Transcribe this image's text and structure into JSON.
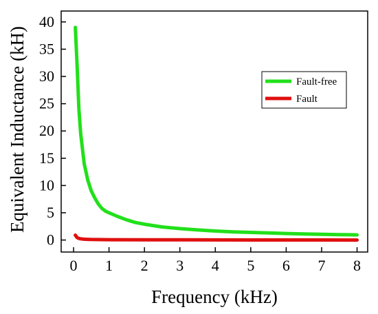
{
  "chart_data": {
    "type": "line",
    "title": "",
    "xlabel": "Frequency (kHz)",
    "ylabel": "Equivalent Inductance (kH)",
    "xlim": [
      -0.35,
      8.3
    ],
    "ylim": [
      -2.2,
      42
    ],
    "xticks": [
      0,
      1,
      2,
      3,
      4,
      5,
      6,
      7,
      8
    ],
    "yticks": [
      0,
      5,
      10,
      15,
      20,
      25,
      30,
      35,
      40
    ],
    "grid": false,
    "legend_position": "right",
    "series": [
      {
        "name": "Fault-free",
        "color": "#22e01b",
        "x": [
          0.05,
          0.1,
          0.15,
          0.2,
          0.3,
          0.4,
          0.5,
          0.6,
          0.7,
          0.8,
          0.9,
          1.0,
          1.25,
          1.5,
          1.75,
          2.0,
          2.5,
          3.0,
          3.5,
          4.0,
          4.5,
          5.0,
          5.5,
          6.0,
          6.5,
          7.0,
          7.5,
          8.0
        ],
        "y": [
          39.0,
          32.0,
          24.0,
          19.5,
          14.0,
          11.0,
          9.0,
          7.7,
          6.6,
          5.8,
          5.3,
          5.0,
          4.3,
          3.7,
          3.2,
          2.9,
          2.4,
          2.1,
          1.85,
          1.65,
          1.5,
          1.4,
          1.3,
          1.2,
          1.12,
          1.05,
          1.0,
          0.95
        ]
      },
      {
        "name": "Fault",
        "color": "#e01010",
        "x": [
          0.05,
          0.1,
          0.15,
          0.2,
          0.3,
          0.5,
          1.0,
          2.0,
          3.0,
          4.0,
          5.0,
          6.0,
          7.0,
          8.0
        ],
        "y": [
          0.9,
          0.45,
          0.3,
          0.22,
          0.15,
          0.1,
          0.06,
          0.04,
          0.03,
          0.02,
          0.015,
          0.01,
          0.005,
          0.0
        ]
      }
    ]
  }
}
